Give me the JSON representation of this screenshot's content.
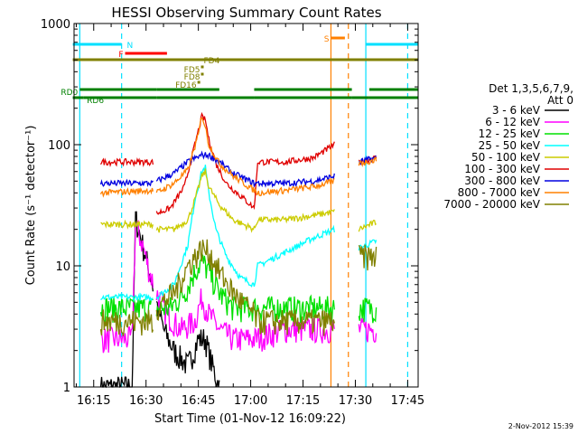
{
  "chart_data": {
    "type": "line",
    "title": "HESSI Observing Summary Count Rates",
    "xlabel": "Start Time (01-Nov-12 16:09:22)",
    "ylabel": "Count Rate (s⁻¹ detector⁻¹)",
    "yscale": "log",
    "ylim": [
      1,
      1000
    ],
    "xlim": [
      "16:09:22",
      "17:48:00"
    ],
    "x_ticks": [
      "16:15",
      "16:30",
      "16:45",
      "17:00",
      "17:15",
      "17:30",
      "17:45"
    ],
    "y_ticks": [
      "1",
      "10",
      "100",
      "1000"
    ],
    "timestamp": "2-Nov-2012 15:39",
    "legend": {
      "placement": "right",
      "title_lines": [
        "Det 1,3,5,6,7,9,",
        "Att 0"
      ],
      "entries": [
        {
          "label": "3 - 6 keV",
          "color": "#000000"
        },
        {
          "label": "6 - 12 keV",
          "color": "#ff00ff"
        },
        {
          "label": "12 - 25 keV",
          "color": "#00e000"
        },
        {
          "label": "25 - 50 keV",
          "color": "#00ffff"
        },
        {
          "label": "50 - 100 keV",
          "color": "#cccc00"
        },
        {
          "label": "100 - 300 keV",
          "color": "#e00000"
        },
        {
          "label": "300 - 800 keV",
          "color": "#0000e0"
        },
        {
          "label": "800 - 7000 keV",
          "color": "#ff8000"
        },
        {
          "label": "7000 - 20000 keV",
          "color": "#808000"
        }
      ]
    },
    "flags": [
      {
        "label": "N",
        "color": "#00e0ff",
        "segments": [
          [
            "16:09",
            "16:23"
          ],
          [
            "17:33",
            "17:48"
          ]
        ]
      },
      {
        "label": "F",
        "color": "#ff0000",
        "segments": [
          [
            "16:24",
            "16:36"
          ]
        ]
      },
      {
        "label": "S",
        "color": "#ff8000",
        "segments": [
          [
            "17:23",
            "17:27"
          ]
        ]
      },
      {
        "label": "FD4",
        "color": "#808000",
        "segments": [
          [
            "16:09",
            "17:48"
          ]
        ]
      },
      {
        "label": "FD5",
        "color": "#808000",
        "segments": [
          [
            "16:46",
            "16:46"
          ]
        ]
      },
      {
        "label": "FD8",
        "color": "#808000",
        "segments": [
          [
            "16:46",
            "16:46"
          ]
        ]
      },
      {
        "label": "FD16",
        "color": "#808000",
        "segments": [
          [
            "16:45",
            "16:45"
          ]
        ]
      },
      {
        "label": "RD0",
        "color": "#008000",
        "segments": [
          [
            "16:11",
            "16:33"
          ],
          [
            "16:33",
            "16:51"
          ],
          [
            "17:01",
            "17:29"
          ],
          [
            "17:34",
            "17:48"
          ]
        ]
      },
      {
        "label": "RD6",
        "color": "#008000",
        "segments": [
          [
            "16:09",
            "16:12"
          ],
          [
            "16:12",
            "16:33"
          ],
          [
            "16:33",
            "17:01"
          ],
          [
            "17:01",
            "17:29"
          ],
          [
            "17:29",
            "17:34"
          ],
          [
            "17:34",
            "17:48"
          ]
        ]
      }
    ],
    "vertical_lines": [
      {
        "time": "16:11",
        "color": "#00e0ff",
        "style": "solid"
      },
      {
        "time": "16:23",
        "color": "#00e0ff",
        "style": "dashed"
      },
      {
        "time": "17:23",
        "color": "#ff8000",
        "style": "solid"
      },
      {
        "time": "17:28",
        "color": "#ff8000",
        "style": "dashed"
      },
      {
        "time": "17:33",
        "color": "#00e0ff",
        "style": "solid"
      },
      {
        "time": "17:45",
        "color": "#00e0ff",
        "style": "dashed"
      }
    ],
    "data_intervals": [
      [
        "16:17",
        "16:32"
      ],
      [
        "16:33",
        "17:01"
      ],
      [
        "17:01",
        "17:24"
      ],
      [
        "17:31",
        "17:36"
      ]
    ],
    "series": [
      {
        "name": "3 - 6 keV",
        "color": "#000000",
        "points": [
          [
            "16:17",
            1.0
          ],
          [
            "16:26",
            1.0
          ],
          [
            "16:27",
            25
          ],
          [
            "16:29",
            15
          ],
          [
            "16:31",
            9
          ],
          [
            "16:33",
            5
          ],
          [
            "16:35",
            3
          ],
          [
            "16:38",
            2
          ],
          [
            "16:42",
            1.5
          ],
          [
            "16:45",
            2.5
          ],
          [
            "16:47",
            2.5
          ],
          [
            "16:49",
            1.5
          ],
          [
            "16:51",
            1.0
          ]
        ]
      },
      {
        "name": "6 - 12 keV",
        "color": "#ff00ff",
        "points": [
          [
            "16:17",
            2.5
          ],
          [
            "16:26",
            2.5
          ],
          [
            "16:27",
            22
          ],
          [
            "16:29",
            15
          ],
          [
            "16:31",
            9
          ],
          [
            "16:33",
            6
          ],
          [
            "16:36",
            4
          ],
          [
            "16:40",
            3
          ],
          [
            "16:44",
            3.5
          ],
          [
            "16:46",
            5.5
          ],
          [
            "16:48",
            4
          ],
          [
            "16:51",
            3
          ],
          [
            "16:55",
            2.5
          ],
          [
            "17:01",
            2.5
          ],
          [
            "17:10",
            3
          ],
          [
            "17:24",
            3
          ],
          [
            "17:31",
            3
          ],
          [
            "17:36",
            3
          ]
        ]
      },
      {
        "name": "12 - 25 keV",
        "color": "#00e000",
        "points": [
          [
            "16:17",
            4.5
          ],
          [
            "16:33",
            4.5
          ],
          [
            "16:37",
            4.5
          ],
          [
            "16:41",
            6
          ],
          [
            "16:44",
            9
          ],
          [
            "16:46",
            11
          ],
          [
            "16:48",
            9
          ],
          [
            "16:51",
            6
          ],
          [
            "16:55",
            4.5
          ],
          [
            "17:01",
            4.5
          ],
          [
            "17:24",
            4.5
          ],
          [
            "17:31",
            4.5
          ],
          [
            "17:36",
            4.5
          ]
        ]
      },
      {
        "name": "25 - 50 keV",
        "color": "#00ffff",
        "points": [
          [
            "16:17",
            5.5
          ],
          [
            "16:32",
            5.5
          ],
          [
            "16:33",
            5.5
          ],
          [
            "16:38",
            7
          ],
          [
            "16:42",
            15
          ],
          [
            "16:44",
            35
          ],
          [
            "16:46",
            60
          ],
          [
            "16:47",
            65
          ],
          [
            "16:48",
            40
          ],
          [
            "16:50",
            20
          ],
          [
            "16:53",
            12
          ],
          [
            "16:57",
            8
          ],
          [
            "17:01",
            7
          ],
          [
            "17:02",
            10
          ],
          [
            "17:10",
            13
          ],
          [
            "17:18",
            17
          ],
          [
            "17:24",
            20
          ],
          [
            "17:31",
            14
          ],
          [
            "17:36",
            16
          ]
        ]
      },
      {
        "name": "50 - 100 keV",
        "color": "#cccc00",
        "points": [
          [
            "16:17",
            22
          ],
          [
            "16:32",
            22
          ],
          [
            "16:33",
            20
          ],
          [
            "16:38",
            20
          ],
          [
            "16:42",
            24
          ],
          [
            "16:44",
            35
          ],
          [
            "16:46",
            55
          ],
          [
            "16:47",
            60
          ],
          [
            "16:48",
            45
          ],
          [
            "16:51",
            32
          ],
          [
            "16:55",
            24
          ],
          [
            "17:01",
            20
          ],
          [
            "17:02",
            24
          ],
          [
            "17:10",
            24
          ],
          [
            "17:18",
            26
          ],
          [
            "17:24",
            28
          ],
          [
            "17:31",
            20
          ],
          [
            "17:36",
            23
          ]
        ]
      },
      {
        "name": "100 - 300 keV",
        "color": "#e00000",
        "points": [
          [
            "16:17",
            72
          ],
          [
            "16:32",
            72
          ],
          [
            "16:33",
            27
          ],
          [
            "16:37",
            30
          ],
          [
            "16:41",
            45
          ],
          [
            "16:44",
            100
          ],
          [
            "16:46",
            170
          ],
          [
            "16:47",
            160
          ],
          [
            "16:48",
            110
          ],
          [
            "16:50",
            70
          ],
          [
            "16:53",
            48
          ],
          [
            "16:57",
            38
          ],
          [
            "17:01",
            30
          ],
          [
            "17:02",
            72
          ],
          [
            "17:10",
            72
          ],
          [
            "17:18",
            78
          ],
          [
            "17:24",
            100
          ],
          [
            "17:31",
            72
          ],
          [
            "17:36",
            78
          ]
        ]
      },
      {
        "name": "300 - 800 keV",
        "color": "#0000e0",
        "points": [
          [
            "16:17",
            48
          ],
          [
            "16:32",
            48
          ],
          [
            "16:33",
            50
          ],
          [
            "16:38",
            58
          ],
          [
            "16:42",
            72
          ],
          [
            "16:46",
            82
          ],
          [
            "16:48",
            82
          ],
          [
            "16:51",
            72
          ],
          [
            "16:55",
            58
          ],
          [
            "17:01",
            48
          ],
          [
            "17:02",
            48
          ],
          [
            "17:10",
            48
          ],
          [
            "17:18",
            50
          ],
          [
            "17:24",
            55
          ],
          [
            "17:31",
            72
          ],
          [
            "17:36",
            78
          ]
        ]
      },
      {
        "name": "800 - 7000 keV",
        "color": "#ff8000",
        "points": [
          [
            "16:17",
            40
          ],
          [
            "16:32",
            42
          ],
          [
            "16:33",
            40
          ],
          [
            "16:38",
            48
          ],
          [
            "16:42",
            62
          ],
          [
            "16:45",
            120
          ],
          [
            "16:46",
            175
          ],
          [
            "16:47",
            140
          ],
          [
            "16:48",
            100
          ],
          [
            "16:51",
            70
          ],
          [
            "16:55",
            55
          ],
          [
            "17:01",
            42
          ],
          [
            "17:02",
            40
          ],
          [
            "17:10",
            42
          ],
          [
            "17:18",
            45
          ],
          [
            "17:24",
            50
          ],
          [
            "17:31",
            70
          ],
          [
            "17:36",
            75
          ]
        ]
      },
      {
        "name": "7000 - 20000 keV",
        "color": "#808000",
        "points": [
          [
            "16:17",
            3.5
          ],
          [
            "16:32",
            3.5
          ],
          [
            "16:33",
            4.5
          ],
          [
            "16:38",
            6
          ],
          [
            "16:42",
            10
          ],
          [
            "16:46",
            14
          ],
          [
            "16:48",
            13
          ],
          [
            "16:51",
            9
          ],
          [
            "16:55",
            6
          ],
          [
            "17:01",
            4
          ],
          [
            "17:02",
            3.5
          ],
          [
            "17:10",
            3.5
          ],
          [
            "17:18",
            3.5
          ],
          [
            "17:24",
            3.5
          ],
          [
            "17:31",
            12
          ],
          [
            "17:36",
            12
          ]
        ]
      }
    ]
  }
}
